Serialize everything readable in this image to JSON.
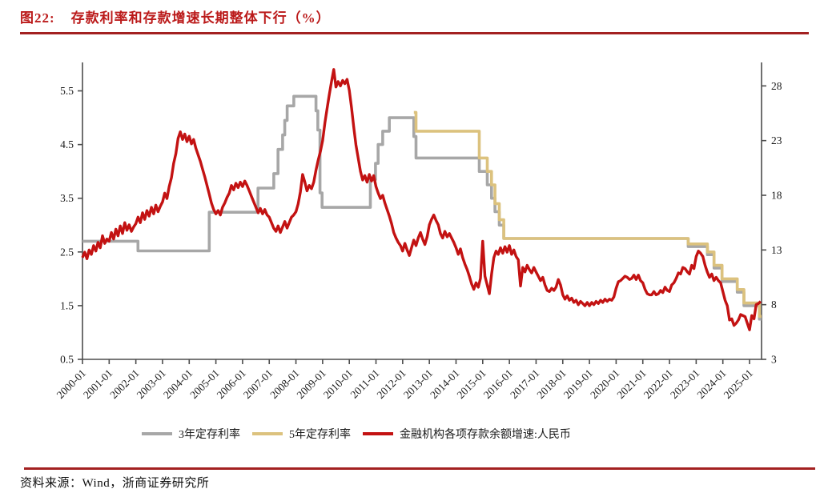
{
  "page": {
    "title_prefix": "图22:",
    "title": "存款利率和存款增速长期整体下行（%）",
    "source": "资料来源：Wind，浙商证券研究所"
  },
  "colors": {
    "title_red": "#BB1A1A",
    "rule_red": "#A32121",
    "series_gray": "#A7A7A7",
    "series_gold": "#DCC27E",
    "series_red": "#C31212",
    "axis": "#4D4D4D",
    "tick_text": "#1A1A1A"
  },
  "legend": [
    {
      "label": "3年定存利率",
      "color": "#A7A7A7"
    },
    {
      "label": "5年定存利率",
      "color": "#DCC27E"
    },
    {
      "label": "金融机构各项存款余额增速:人民币",
      "color": "#C31212"
    }
  ],
  "chart_data": {
    "type": "line",
    "title": "存款利率和存款增速长期整体下行（%）",
    "x_axis": {
      "range_years": [
        2000,
        2025.45
      ],
      "labels": [
        "2000-01",
        "2001-01",
        "2002-01",
        "2003-01",
        "2004-01",
        "2005-01",
        "2006-01",
        "2007-01",
        "2008-01",
        "2009-01",
        "2010-01",
        "2011-01",
        "2012-01",
        "2013-01",
        "2014-01",
        "2015-01",
        "2016-01",
        "2017-01",
        "2018-01",
        "2019-01",
        "2020-01",
        "2021-01",
        "2022-01",
        "2023-01",
        "2024-01",
        "2025-01"
      ]
    },
    "y_left": {
      "ticks": [
        0.5,
        1.5,
        2.5,
        3.5,
        4.5,
        5.5
      ],
      "range": [
        0.5,
        6.0
      ]
    },
    "y_right": {
      "ticks": [
        3,
        8,
        13,
        18,
        23,
        28
      ],
      "range": [
        3,
        30
      ]
    },
    "end_year": 2025.45,
    "grid": false,
    "legend_position": "bottom",
    "series": [
      {
        "name": "3年定存利率",
        "data_name": "series-3y-deposit-rate-line",
        "type": "step",
        "axis": "left",
        "color": "#A7A7A7",
        "width": 3.6,
        "points": [
          [
            2000.0,
            2.7
          ],
          [
            2002.08,
            2.52
          ],
          [
            2004.75,
            3.24
          ],
          [
            2006.58,
            3.69
          ],
          [
            2007.17,
            3.96
          ],
          [
            2007.33,
            4.41
          ],
          [
            2007.5,
            4.68
          ],
          [
            2007.58,
            4.95
          ],
          [
            2007.67,
            5.22
          ],
          [
            2007.92,
            5.4
          ],
          [
            2008.75,
            5.13
          ],
          [
            2008.82,
            4.77
          ],
          [
            2008.9,
            3.6
          ],
          [
            2008.98,
            3.33
          ],
          [
            2010.79,
            3.85
          ],
          [
            2010.98,
            4.15
          ],
          [
            2011.08,
            4.5
          ],
          [
            2011.25,
            4.75
          ],
          [
            2011.5,
            5.0
          ],
          [
            2012.42,
            4.65
          ],
          [
            2012.5,
            4.25
          ],
          [
            2014.87,
            4.0
          ],
          [
            2015.17,
            3.75
          ],
          [
            2015.33,
            3.5
          ],
          [
            2015.46,
            3.25
          ],
          [
            2015.62,
            3.0
          ],
          [
            2015.79,
            2.75
          ],
          [
            2022.7,
            2.6
          ],
          [
            2023.42,
            2.45
          ],
          [
            2023.67,
            2.2
          ],
          [
            2023.97,
            1.95
          ],
          [
            2024.54,
            1.75
          ],
          [
            2024.79,
            1.5
          ],
          [
            2025.37,
            1.25
          ]
        ]
      },
      {
        "name": "5年定存利率",
        "data_name": "series-5y-deposit-rate-line",
        "type": "step",
        "axis": "left",
        "color": "#DCC27E",
        "width": 3.6,
        "points": [
          [
            2012.42,
            5.1
          ],
          [
            2012.5,
            4.75
          ],
          [
            2014.87,
            4.25
          ],
          [
            2015.17,
            4.0
          ],
          [
            2015.33,
            3.75
          ],
          [
            2015.46,
            3.4
          ],
          [
            2015.62,
            3.1
          ],
          [
            2015.79,
            2.75
          ],
          [
            2022.7,
            2.65
          ],
          [
            2023.42,
            2.5
          ],
          [
            2023.67,
            2.25
          ],
          [
            2023.97,
            2.0
          ],
          [
            2024.54,
            1.8
          ],
          [
            2024.79,
            1.55
          ],
          [
            2025.37,
            1.3
          ]
        ]
      },
      {
        "name": "金融机构各项存款余额增速:人民币",
        "data_name": "series-deposit-growth-line",
        "type": "line",
        "axis": "right",
        "color": "#C31212",
        "width": 3.4,
        "start_year": 2000,
        "monthly_values": [
          12.3,
          12.8,
          12.2,
          13.0,
          12.6,
          13.4,
          12.9,
          13.7,
          13.2,
          14.3,
          13.6,
          14.0,
          13.8,
          14.6,
          14.0,
          14.9,
          14.3,
          15.2,
          14.5,
          15.5,
          14.8,
          15.3,
          14.7,
          15.1,
          15.4,
          16.0,
          15.5,
          16.4,
          15.8,
          16.6,
          16.1,
          16.9,
          16.3,
          17.1,
          16.5,
          17.0,
          17.4,
          18.2,
          17.7,
          18.8,
          19.6,
          20.9,
          21.8,
          23.2,
          23.8,
          23.1,
          23.6,
          22.9,
          23.4,
          22.7,
          23.1,
          22.3,
          21.7,
          21.1,
          20.4,
          19.7,
          18.9,
          18.1,
          17.3,
          16.7,
          16.3,
          16.6,
          16.2,
          16.9,
          17.3,
          17.8,
          18.2,
          18.9,
          18.5,
          19.1,
          18.7,
          19.2,
          18.8,
          19.3,
          18.9,
          18.4,
          17.9,
          17.4,
          16.9,
          16.4,
          16.8,
          16.3,
          16.7,
          16.2,
          16.0,
          15.5,
          15.0,
          14.7,
          15.2,
          14.6,
          15.1,
          15.6,
          15.0,
          15.5,
          16.0,
          16.2,
          16.5,
          17.2,
          18.3,
          19.9,
          19.2,
          18.4,
          18.9,
          18.6,
          19.2,
          20.3,
          21.2,
          22.0,
          23.0,
          24.6,
          25.9,
          27.2,
          28.4,
          29.5,
          27.9,
          28.4,
          28.0,
          28.5,
          28.2,
          28.6,
          27.6,
          26.0,
          24.2,
          22.6,
          21.4,
          20.2,
          19.4,
          19.8,
          19.2,
          19.9,
          19.3,
          19.8,
          18.8,
          18.2,
          17.7,
          18.0,
          17.3,
          16.7,
          16.1,
          15.4,
          14.6,
          14.1,
          13.7,
          13.4,
          12.9,
          13.6,
          13.0,
          12.5,
          13.2,
          13.9,
          13.4,
          14.1,
          14.6,
          14.0,
          13.5,
          14.2,
          15.3,
          15.8,
          16.2,
          15.7,
          15.3,
          14.5,
          14.1,
          14.7,
          14.2,
          14.5,
          14.1,
          13.7,
          13.2,
          12.6,
          13.1,
          12.3,
          11.7,
          11.2,
          10.6,
          9.9,
          9.4,
          10.0,
          9.6,
          10.4,
          13.8,
          10.6,
          9.8,
          9.0,
          10.8,
          12.3,
          12.9,
          12.6,
          13.2,
          12.7,
          13.3,
          12.8,
          13.4,
          12.6,
          13.0,
          12.4,
          12.1,
          9.7,
          11.4,
          11.0,
          11.6,
          11.2,
          10.9,
          11.4,
          11.0,
          10.6,
          10.2,
          10.5,
          9.8,
          9.3,
          9.2,
          9.5,
          9.3,
          9.6,
          10.3,
          9.8,
          8.9,
          8.5,
          8.8,
          8.4,
          8.6,
          8.2,
          8.4,
          8.0,
          8.3,
          8.1,
          7.9,
          8.2,
          7.9,
          8.2,
          8.0,
          8.3,
          8.1,
          8.4,
          8.2,
          8.5,
          8.3,
          8.5,
          8.4,
          8.7,
          9.5,
          10.1,
          10.2,
          10.4,
          10.6,
          10.5,
          10.3,
          10.4,
          10.7,
          10.3,
          10.7,
          10.2,
          10.0,
          9.4,
          9.0,
          8.9,
          8.9,
          9.2,
          8.9,
          9.0,
          9.3,
          9.1,
          9.6,
          9.3,
          9.2,
          9.8,
          10.0,
          10.4,
          10.9,
          10.8,
          11.4,
          11.3,
          11.0,
          10.8,
          11.6,
          11.3,
          12.4,
          12.9,
          12.7,
          12.4,
          11.6,
          11.0,
          10.5,
          10.8,
          10.2,
          10.5,
          10.2,
          10.0,
          9.2,
          8.4,
          7.9,
          6.6,
          6.7,
          6.1,
          6.3,
          6.6,
          7.1,
          7.0,
          6.9,
          6.3,
          5.7,
          7.0,
          6.7,
          8.0,
          8.1,
          8.3
        ]
      }
    ]
  }
}
